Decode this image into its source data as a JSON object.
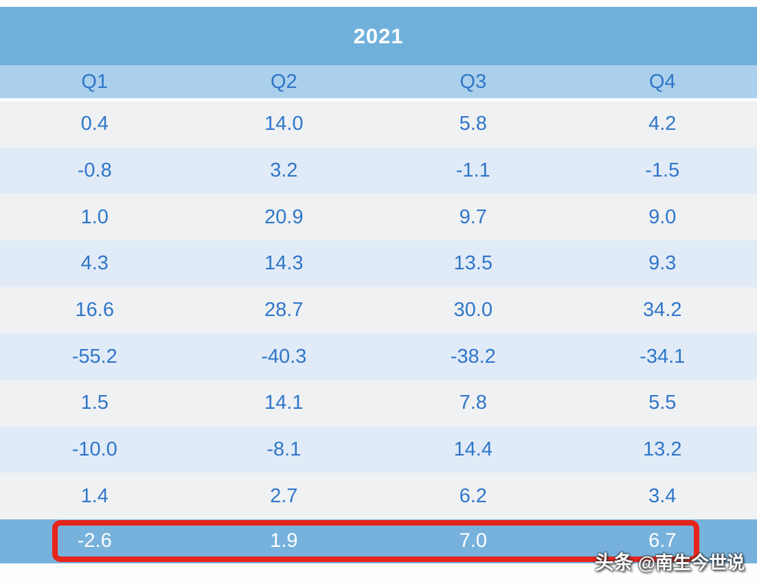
{
  "title": "2021",
  "chart_data": {
    "type": "table",
    "title": "2021",
    "categories": [
      "Q1",
      "Q2",
      "Q3",
      "Q4"
    ],
    "rows": [
      [
        "0.4",
        "14.0",
        "5.8",
        "4.2"
      ],
      [
        "-0.8",
        "3.2",
        "-1.1",
        "-1.5"
      ],
      [
        "1.0",
        "20.9",
        "9.7",
        "9.0"
      ],
      [
        "4.3",
        "14.3",
        "13.5",
        "9.3"
      ],
      [
        "16.6",
        "28.7",
        "30.0",
        "34.2"
      ],
      [
        "-55.2",
        "-40.3",
        "-38.2",
        "-34.1"
      ],
      [
        "1.5",
        "14.1",
        "7.8",
        "5.5"
      ],
      [
        "-10.0",
        "-8.1",
        "14.4",
        "13.2"
      ],
      [
        "1.4",
        "2.7",
        "6.2",
        "3.4"
      ],
      [
        "-2.6",
        "1.9",
        "7.0",
        "6.7"
      ]
    ],
    "highlighted_row_index": 9,
    "highlighted_row_values": [
      "-2.6",
      "1.9",
      "7.0",
      "6.7"
    ],
    "grid": false,
    "legend_position": "none"
  },
  "watermark": {
    "brand": "头条",
    "handle": "@南生今世说"
  },
  "colors": {
    "header_bg": "#70b1dc",
    "subheader_bg": "#abd0ec",
    "row_light": "#eff1f3",
    "row_blue": "#e1ebf7",
    "highlight_bg": "#77b2dc",
    "text_blue": "#2f76c9",
    "highlight_text": "#ffffff",
    "annotation_red": "#e6251d"
  }
}
